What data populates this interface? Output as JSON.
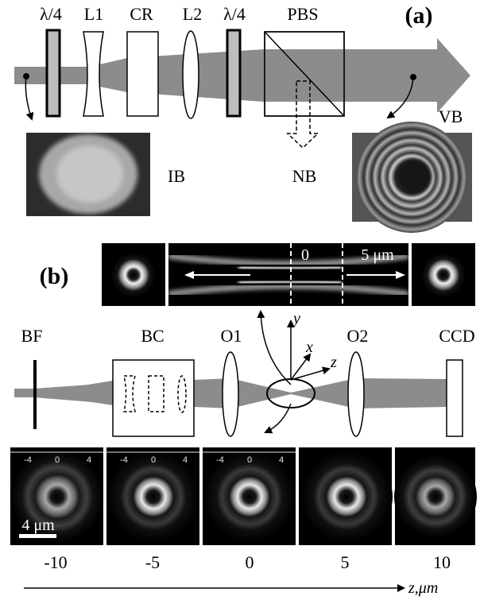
{
  "panel_a": {
    "label": "(a)",
    "components": [
      "λ/4",
      "L1",
      "CR",
      "L2",
      "λ/4",
      "PBS"
    ],
    "beam_labels": {
      "input": "IB",
      "null": "NB",
      "vortex": "VB"
    }
  },
  "panel_b": {
    "label": "(b)",
    "profile_labels": {
      "focus": "0",
      "scale": "5 μm"
    },
    "components": [
      "BF",
      "BC",
      "O1",
      "O2",
      "CCD"
    ],
    "axes": {
      "x": "x",
      "y": "y",
      "z": "z"
    },
    "frame_ticks": [
      "-4",
      "0",
      "4"
    ],
    "scalebar": "4 μm",
    "z_values": [
      "-10",
      "-5",
      "0",
      "5",
      "10"
    ],
    "z_axis_label": "z,μm"
  }
}
